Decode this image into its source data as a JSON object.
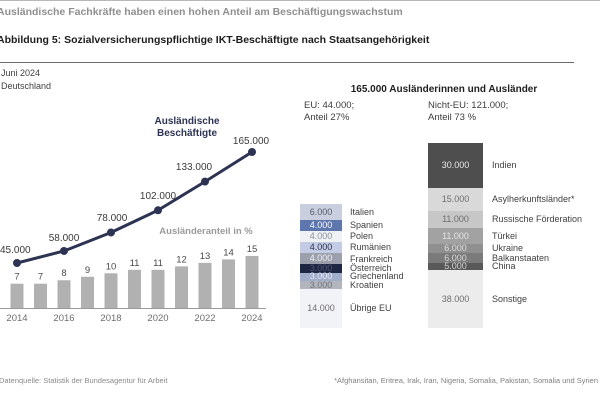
{
  "kicker": "Ausländische Fachkräfte haben einen hohen Anteil am Beschäftigungswachstum",
  "title": "Abbildung 5: Sozialversicherungspflichtige IKT-Beschäftigte nach Staatsangehörigkeit",
  "meta": {
    "date": "Juni 2024",
    "region": "Deutschland"
  },
  "left_chart": {
    "line_label": "Ausländische Beschäftigte",
    "bar_label": "Ausländeranteil in %",
    "line": {
      "years": [
        2014,
        2016,
        2018,
        2020,
        2022,
        2024
      ],
      "values_thousands": [
        45,
        58,
        78,
        102,
        133,
        165
      ],
      "labels": [
        "45.000",
        "58.000",
        "78.000",
        "102.000",
        "133.000",
        "165.000"
      ]
    },
    "bars": {
      "years": [
        2014,
        2015,
        2016,
        2017,
        2018,
        2019,
        2020,
        2021,
        2022,
        2023,
        2024
      ],
      "values": [
        7,
        7,
        8,
        9,
        10,
        11,
        11,
        12,
        13,
        14,
        15
      ]
    },
    "x_ticks": [
      "2014",
      "2016",
      "2018",
      "2020",
      "2022",
      "2024"
    ]
  },
  "right_panel": {
    "title": "165.000 Ausländerinnen und Ausländer",
    "eu": {
      "line1": "EU: 44.000;",
      "line2": "Anteil 27%",
      "segments": [
        {
          "label": "Italien",
          "value": "6.000",
          "v": 6,
          "bg": "#c9cfde",
          "fg": "#565b69"
        },
        {
          "label": "Spanien",
          "value": "4.000",
          "v": 4,
          "bg": "#5e76ae",
          "fg": "#ffffff"
        },
        {
          "label": "Polen",
          "value": "4.000",
          "v": 4,
          "bg": "#eff1f5",
          "fg": "#8d929e"
        },
        {
          "label": "Rumänien",
          "value": "4.000",
          "v": 4,
          "bg": "#c3cce4",
          "fg": "#2b3250"
        },
        {
          "label": "Frankreich",
          "value": "4.000",
          "v": 4,
          "bg": "#9ba0ac",
          "fg": "#f0f0f0"
        },
        {
          "label": "Österreich",
          "value": "3.000",
          "v": 3,
          "bg": "#1d2642",
          "fg": "#4d5470"
        },
        {
          "label": "Griechenland",
          "value": "3.000",
          "v": 3,
          "bg": "#a2adca",
          "fg": "#e8eaf2"
        },
        {
          "label": "Kroatien",
          "value": "3.000",
          "v": 3,
          "bg": "#b2b5bd",
          "fg": "#71747c"
        },
        {
          "label": "Übrige EU",
          "value": "14.000",
          "v": 14,
          "bg": "#f2f3f6",
          "fg": "#6f6f6f"
        }
      ]
    },
    "non_eu": {
      "line1": "Nicht-EU: 121.000;",
      "line2": "Anteil 73 %",
      "segments": [
        {
          "label": "Indien",
          "value": "30.000",
          "v": 30,
          "bg": "#4e4e4e",
          "fg": "#e9e9e9"
        },
        {
          "label": "Asylherkunftsländer*",
          "value": "15.000",
          "v": 15,
          "bg": "#d9d9d9",
          "fg": "#6e6e6e"
        },
        {
          "label": "Russische Förderation",
          "value": "11.000",
          "v": 11,
          "bg": "#c7c7c7",
          "fg": "#6e6e6e"
        },
        {
          "label": "Türkei",
          "value": "11.000",
          "v": 11,
          "bg": "#a2a2a2",
          "fg": "#e3e3e3"
        },
        {
          "label": "Ukraine",
          "value": "6.000",
          "v": 6,
          "bg": "#909090",
          "fg": "#dcdcdc"
        },
        {
          "label": "Balkanstaaten",
          "value": "6.000",
          "v": 6,
          "bg": "#7b7b7b",
          "fg": "#d5d5d5"
        },
        {
          "label": "China",
          "value": "5.000",
          "v": 5,
          "bg": "#595959",
          "fg": "#cfcfcf"
        },
        {
          "label": "Sonstige",
          "value": "38.000",
          "v": 38,
          "bg": "#ececec",
          "fg": "#6e6e6e"
        }
      ]
    }
  },
  "footer": {
    "source": "Datenquelle: Statistik der Bundesagentur für Arbeit",
    "footnote": "*Afghansitan, Eritrea, Irak, Iran, Nigeria, Somalia, Pakistan, Somalia und Syrien"
  },
  "colors": {
    "line": "#2d3453",
    "bar": "#b1b1b1",
    "axis": "#9a9a9a",
    "value_label": "#3a3a3a",
    "pct_label": "#4a4a4a",
    "tick_label": "#6e6e6e"
  },
  "chart_data": [
    {
      "type": "line",
      "title": "Ausländische Beschäftigte",
      "x": [
        2014,
        2016,
        2018,
        2020,
        2022,
        2024
      ],
      "values": [
        45000,
        58000,
        78000,
        102000,
        133000,
        165000
      ],
      "data_labels": [
        "45.000",
        "58.000",
        "78.000",
        "102.000",
        "133.000",
        "165.000"
      ],
      "legend_position": "above-line",
      "grid": false
    },
    {
      "type": "bar",
      "title": "Ausländeranteil in %",
      "categories": [
        2014,
        2015,
        2016,
        2017,
        2018,
        2019,
        2020,
        2021,
        2022,
        2023,
        2024
      ],
      "values": [
        7,
        7,
        8,
        9,
        10,
        11,
        11,
        12,
        13,
        14,
        15
      ],
      "xlabel": "",
      "ylabel": "Ausländeranteil in %",
      "x_tick_labels": [
        "2014",
        "2016",
        "2018",
        "2020",
        "2022",
        "2024"
      ],
      "grid": false
    },
    {
      "type": "stacked_bar",
      "title": "EU: 44.000; Anteil 27%",
      "categories": [
        "Italien",
        "Spanien",
        "Polen",
        "Rumänien",
        "Frankreich",
        "Österreich",
        "Griechenland",
        "Kroatien",
        "Übrige EU"
      ],
      "values": [
        6000,
        4000,
        4000,
        4000,
        4000,
        3000,
        3000,
        3000,
        14000
      ]
    },
    {
      "type": "stacked_bar",
      "title": "Nicht-EU: 121.000; Anteil 73 %",
      "categories": [
        "Indien",
        "Asylherkunftsländer*",
        "Russische Förderation",
        "Türkei",
        "Ukraine",
        "Balkanstaaten",
        "China",
        "Sonstige"
      ],
      "values": [
        30000,
        15000,
        11000,
        11000,
        6000,
        6000,
        5000,
        38000
      ]
    }
  ]
}
